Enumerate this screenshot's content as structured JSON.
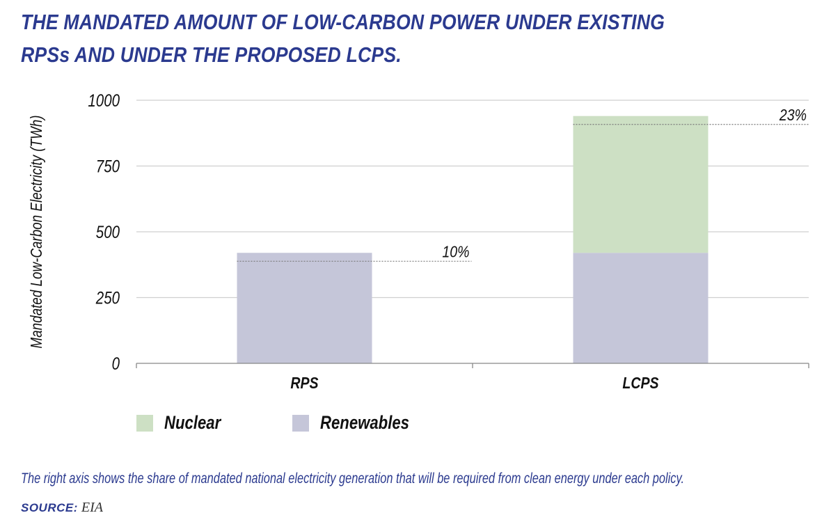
{
  "title_line1": "THE MANDATED AMOUNT OF LOW-CARBON POWER UNDER EXISTING",
  "title_line2": "RPSs AND UNDER THE PROPOSED LCPS.",
  "chart_data": {
    "type": "bar",
    "stacked": true,
    "categories": [
      "RPS",
      "LCPS"
    ],
    "series": [
      {
        "name": "Renewables",
        "values": [
          420,
          420
        ],
        "color": "#c5c6d9"
      },
      {
        "name": "Nuclear",
        "values": [
          0,
          520
        ],
        "color": "#cde0c4"
      }
    ],
    "annotations": [
      {
        "category": "RPS",
        "label": "10%",
        "value": 388
      },
      {
        "category": "LCPS",
        "label": "23%",
        "value": 908
      }
    ],
    "ylabel": "Mandated Low-Carbon Electricity (TWh)",
    "xlabel": "",
    "ylim": [
      0,
      1000
    ],
    "yticks": [
      0,
      250,
      500,
      750,
      1000
    ],
    "ytick_labels": [
      "0",
      "250",
      "500",
      "750",
      "1000"
    ],
    "grid": true,
    "legend_position": "bottom-left"
  },
  "legend": [
    {
      "label": "Nuclear",
      "color": "#cde0c4"
    },
    {
      "label": "Renewables",
      "color": "#c5c6d9"
    }
  ],
  "note": "The right axis shows the share of mandated national electricity generation that will be required from clean energy under each policy.",
  "source_label": "SOURCE:",
  "source_value": "EIA"
}
